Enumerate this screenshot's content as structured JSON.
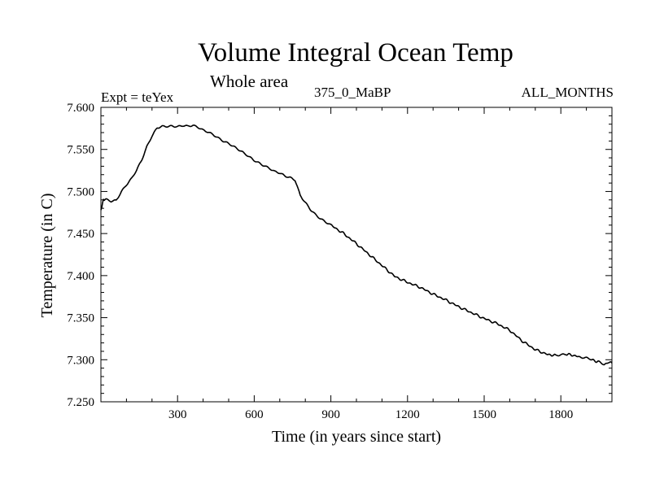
{
  "chart_data": {
    "type": "line",
    "title": "Volume Integral Ocean Temp",
    "subtitle": "Whole area",
    "experiment_label": "Expt = teYex",
    "period_label": "375_0_MaBP",
    "months_label": "ALL_MONTHS",
    "xlabel": "Time (in years since start)",
    "ylabel": "Temperature (in C)",
    "xlim": [
      0,
      2000
    ],
    "ylim": [
      7.25,
      7.6
    ],
    "x_ticks": [
      300,
      600,
      900,
      1200,
      1500,
      1800
    ],
    "y_ticks": [
      "7.250",
      "7.300",
      "7.350",
      "7.400",
      "7.450",
      "7.500",
      "7.550",
      "7.600"
    ],
    "grid": false,
    "series": [
      {
        "name": "Volume Integral Ocean Temp",
        "x": [
          0,
          10,
          20,
          40,
          60,
          80,
          100,
          120,
          140,
          160,
          180,
          200,
          220,
          240,
          260,
          280,
          300,
          320,
          340,
          360,
          380,
          400,
          420,
          440,
          460,
          480,
          500,
          520,
          540,
          560,
          580,
          600,
          620,
          640,
          660,
          680,
          700,
          720,
          740,
          760,
          780,
          800,
          820,
          840,
          860,
          880,
          900,
          950,
          1000,
          1050,
          1100,
          1150,
          1200,
          1250,
          1300,
          1350,
          1400,
          1450,
          1500,
          1550,
          1600,
          1650,
          1700,
          1750,
          1780,
          1800,
          1820,
          1850,
          1880,
          1900,
          1920,
          1950,
          1970,
          1985,
          2000
        ],
        "y": [
          7.478,
          7.49,
          7.491,
          7.489,
          7.49,
          7.5,
          7.508,
          7.515,
          7.525,
          7.537,
          7.553,
          7.566,
          7.576,
          7.578,
          7.578,
          7.578,
          7.577,
          7.578,
          7.577,
          7.578,
          7.576,
          7.573,
          7.571,
          7.568,
          7.564,
          7.56,
          7.557,
          7.553,
          7.549,
          7.545,
          7.541,
          7.537,
          7.534,
          7.531,
          7.528,
          7.524,
          7.522,
          7.518,
          7.516,
          7.513,
          7.495,
          7.487,
          7.479,
          7.473,
          7.468,
          7.464,
          7.46,
          7.45,
          7.438,
          7.425,
          7.412,
          7.399,
          7.392,
          7.386,
          7.378,
          7.371,
          7.363,
          7.356,
          7.349,
          7.343,
          7.335,
          7.322,
          7.312,
          7.306,
          7.305,
          7.306,
          7.307,
          7.305,
          7.303,
          7.302,
          7.3,
          7.297,
          7.294,
          7.297,
          7.296
        ],
        "color": "#000000"
      }
    ]
  }
}
